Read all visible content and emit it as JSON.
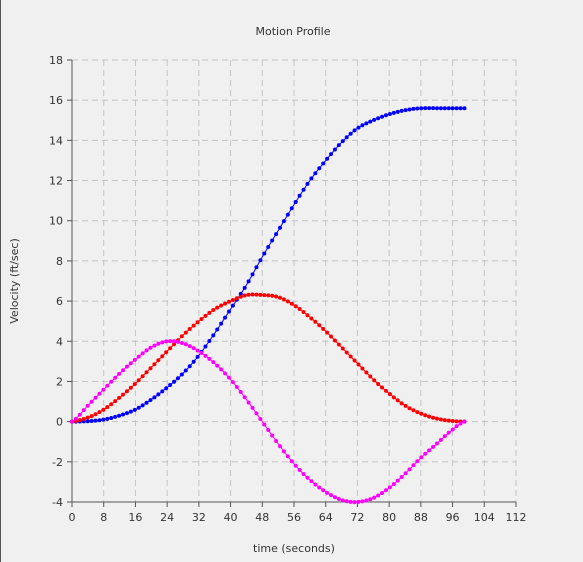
{
  "chart_data": {
    "type": "scatter",
    "title": "Motion Profile",
    "xlabel": "time (seconds)",
    "ylabel": "Velocity (ft/sec)",
    "xlim": [
      0,
      112
    ],
    "ylim": [
      -4,
      18
    ],
    "xticks": [
      0,
      8,
      16,
      24,
      32,
      40,
      48,
      56,
      64,
      72,
      80,
      88,
      96,
      104,
      112
    ],
    "yticks": [
      -4,
      -2,
      0,
      2,
      4,
      6,
      8,
      10,
      12,
      14,
      16,
      18
    ],
    "grid": true,
    "legend": "none",
    "series": [
      {
        "color": "#0000ff",
        "x": [
          0,
          4,
          8,
          12,
          16,
          20,
          24,
          28,
          32,
          36,
          40,
          44,
          48,
          52,
          56,
          60,
          64,
          68,
          72,
          76,
          80,
          84,
          88,
          92,
          96,
          99
        ],
        "values": [
          0,
          0.02,
          0.1,
          0.3,
          0.6,
          1.1,
          1.7,
          2.4,
          3.3,
          4.4,
          5.6,
          6.8,
          8.2,
          9.5,
          10.8,
          12.0,
          13.0,
          13.9,
          14.6,
          15.0,
          15.3,
          15.5,
          15.6,
          15.6,
          15.6,
          15.6
        ]
      },
      {
        "color": "#ff0000",
        "x": [
          0,
          4,
          8,
          12,
          16,
          20,
          24,
          28,
          32,
          36,
          40,
          44,
          48,
          52,
          56,
          60,
          64,
          68,
          72,
          76,
          80,
          84,
          88,
          92,
          96,
          99
        ],
        "values": [
          0,
          0.2,
          0.6,
          1.2,
          1.9,
          2.7,
          3.5,
          4.3,
          5.0,
          5.6,
          6.0,
          6.3,
          6.3,
          6.2,
          5.8,
          5.2,
          4.5,
          3.7,
          2.9,
          2.1,
          1.4,
          0.8,
          0.4,
          0.15,
          0.03,
          0
        ]
      },
      {
        "color": "#ff00ff",
        "x": [
          0,
          4,
          8,
          12,
          16,
          20,
          24,
          28,
          32,
          36,
          40,
          44,
          48,
          52,
          56,
          60,
          64,
          68,
          72,
          76,
          80,
          84,
          88,
          92,
          96,
          99
        ],
        "values": [
          0,
          0.8,
          1.6,
          2.4,
          3.1,
          3.7,
          4.0,
          3.9,
          3.5,
          2.9,
          2.1,
          1.1,
          0,
          -1.1,
          -2.1,
          -2.9,
          -3.5,
          -3.9,
          -4.0,
          -3.8,
          -3.3,
          -2.6,
          -1.8,
          -1.1,
          -0.4,
          0
        ]
      }
    ]
  }
}
